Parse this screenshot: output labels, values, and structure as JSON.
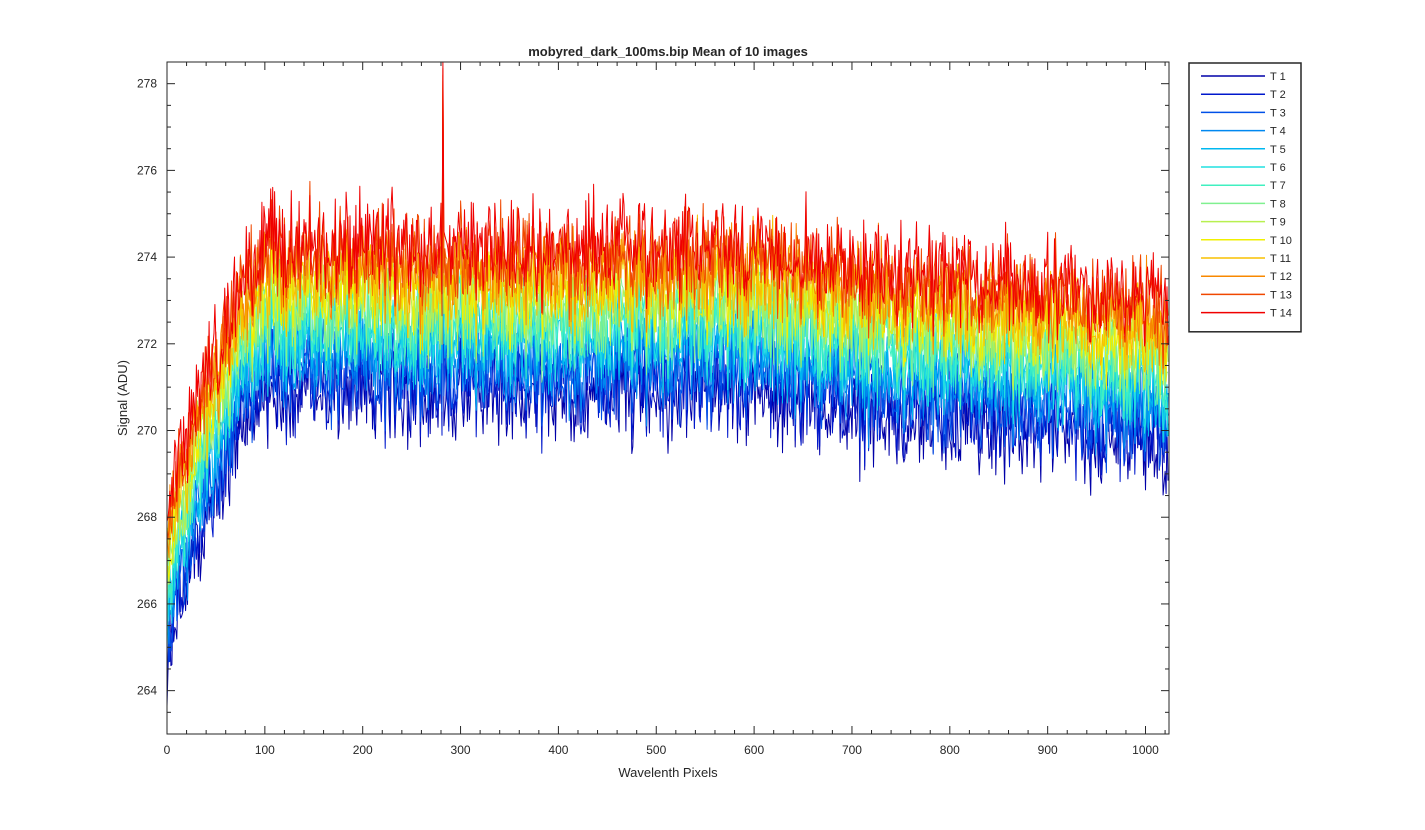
{
  "figure": {
    "background": "#ffffff",
    "axes_color": "#262626"
  },
  "chart_data": {
    "type": "line",
    "title": "mobyred_dark_100ms.bip  Mean of 10 images",
    "xlabel": "Wavelenth Pixels",
    "ylabel": "Signal (ADU)",
    "xlim": [
      0,
      1024
    ],
    "ylim": [
      263,
      278.5
    ],
    "xticks": [
      0,
      100,
      200,
      300,
      400,
      500,
      600,
      700,
      800,
      900,
      1000
    ],
    "yticks": [
      264,
      266,
      268,
      270,
      272,
      274,
      276,
      278
    ],
    "grid": false,
    "legend_position": "outside-top-right",
    "profile": {
      "x": [
        0,
        5,
        10,
        20,
        30,
        40,
        50,
        60,
        70,
        80,
        90,
        100,
        110,
        150,
        200,
        250,
        280,
        300,
        400,
        500,
        550,
        600,
        650,
        700,
        750,
        800,
        850,
        900,
        950,
        1000,
        1023
      ],
      "y": [
        265.8,
        266.8,
        267.4,
        268.1,
        268.8,
        269.4,
        270.0,
        270.6,
        271.2,
        271.7,
        272.1,
        272.4,
        272.5,
        272.5,
        272.4,
        272.4,
        272.4,
        272.4,
        272.4,
        272.4,
        272.5,
        272.4,
        272.3,
        272.0,
        271.8,
        271.7,
        271.6,
        271.5,
        271.4,
        271.3,
        271.2
      ],
      "note_spike": {
        "x": 282,
        "y_top": 278.5
      }
    },
    "series": [
      {
        "name": "T 1",
        "color": "#0000A8",
        "offset": -1.6,
        "noise_amplitude": 1.3
      },
      {
        "name": "T 2",
        "color": "#0018CC",
        "offset": -1.3,
        "noise_amplitude": 1.3
      },
      {
        "name": "T 3",
        "color": "#0050E8",
        "offset": -1.0,
        "noise_amplitude": 1.3
      },
      {
        "name": "T 4",
        "color": "#0088F0",
        "offset": -0.7,
        "noise_amplitude": 1.3
      },
      {
        "name": "T 5",
        "color": "#00B8F0",
        "offset": -0.4,
        "noise_amplitude": 1.3
      },
      {
        "name": "T 6",
        "color": "#20E0E0",
        "offset": -0.15,
        "noise_amplitude": 1.3
      },
      {
        "name": "T 7",
        "color": "#40F0C0",
        "offset": 0.1,
        "noise_amplitude": 1.3
      },
      {
        "name": "T 8",
        "color": "#80F090",
        "offset": 0.35,
        "noise_amplitude": 1.3
      },
      {
        "name": "T 9",
        "color": "#B8F050",
        "offset": 0.6,
        "noise_amplitude": 1.3
      },
      {
        "name": "T 10",
        "color": "#F0F000",
        "offset": 0.85,
        "noise_amplitude": 1.3
      },
      {
        "name": "T 11",
        "color": "#F8C000",
        "offset": 1.1,
        "noise_amplitude": 1.3
      },
      {
        "name": "T 12",
        "color": "#F88800",
        "offset": 1.35,
        "noise_amplitude": 1.3
      },
      {
        "name": "T 13",
        "color": "#F04800",
        "offset": 1.6,
        "noise_amplitude": 1.3
      },
      {
        "name": "T 14",
        "color": "#F00000",
        "offset": 1.85,
        "noise_amplitude": 1.3
      }
    ]
  }
}
